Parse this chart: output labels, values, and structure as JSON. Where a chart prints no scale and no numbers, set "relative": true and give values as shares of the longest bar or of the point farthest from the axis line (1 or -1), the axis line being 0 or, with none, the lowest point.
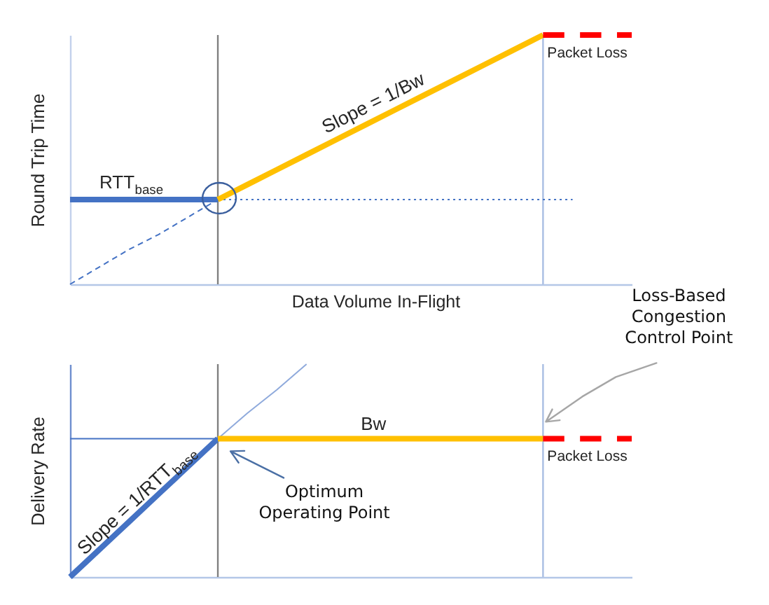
{
  "chart_data": [
    {
      "type": "line",
      "ylabel": "Round Trip Time",
      "xlabel": "Data Volume In-Flight",
      "relative": true,
      "tick_labels": false,
      "categories": [
        null,
        null,
        null,
        null,
        null,
        null,
        null,
        null,
        null,
        null,
        null,
        null,
        null,
        null,
        null,
        null,
        null,
        null,
        null,
        null
      ],
      "series": [
        {
          "color": "#4472c4",
          "line_style": "dashed",
          "values": [
            0,
            0.07,
            0.14,
            0.2,
            0.27,
            0.34,
            null,
            null,
            null,
            null,
            null,
            null,
            null,
            null,
            null,
            null,
            null,
            null,
            null,
            null
          ]
        },
        {
          "color": "#4472c4",
          "line_style": "dotted",
          "values": [
            null,
            null,
            null,
            null,
            null,
            0.34,
            0.34,
            0.34,
            0.34,
            0.34,
            0.34,
            0.34,
            0.34,
            0.34,
            0.34,
            0.34,
            0.34,
            0.34,
            null,
            null
          ]
        },
        {
          "name": "RTT$_{base}$",
          "color": "#4472c4",
          "values": [
            0.34,
            0.34,
            0.34,
            0.34,
            0.34,
            0.34,
            null,
            null,
            null,
            null,
            null,
            null,
            null,
            null,
            null,
            null,
            null,
            null,
            null,
            null
          ]
        },
        {
          "name": "Slope = 1/Bw",
          "color": "#ffc000",
          "values": [
            null,
            null,
            null,
            null,
            null,
            0.34,
            0.4,
            0.46,
            0.52,
            0.58,
            0.64,
            0.7,
            0.76,
            0.82,
            0.88,
            0.94,
            1,
            null,
            null,
            null
          ]
        },
        {
          "name": "Packet Loss",
          "color": "#ff0000",
          "line_style": "dashed",
          "values": [
            null,
            null,
            null,
            null,
            null,
            null,
            null,
            null,
            null,
            null,
            null,
            null,
            null,
            null,
            null,
            null,
            1,
            1,
            1,
            1
          ]
        }
      ],
      "annotations": [
        "Loss-Based Congestion Control Point"
      ]
    },
    {
      "type": "line",
      "ylabel": "Delivery Rate",
      "relative": true,
      "tick_labels": false,
      "categories": [
        null,
        null,
        null,
        null,
        null,
        null,
        null,
        null,
        null,
        null,
        null,
        null,
        null,
        null,
        null,
        null,
        null,
        null,
        null,
        null
      ],
      "series": [
        {
          "color": "#4472c4",
          "values": [
            0.65,
            0.65,
            0.65,
            0.65,
            0.65,
            0.65,
            null,
            null,
            null,
            null,
            null,
            null,
            null,
            null,
            null,
            null,
            null,
            null,
            null,
            null
          ]
        },
        {
          "color": "#8faadc",
          "values": [
            null,
            null,
            null,
            null,
            null,
            0.65,
            0.77,
            0.88,
            1,
            null,
            null,
            null,
            null,
            null,
            null,
            null,
            null,
            null,
            null,
            null
          ]
        },
        {
          "name": "Slope = 1/RTT$_{base}$",
          "color": "#4472c4",
          "values": [
            0,
            0.13,
            0.26,
            0.39,
            0.52,
            0.65,
            null,
            null,
            null,
            null,
            null,
            null,
            null,
            null,
            null,
            null,
            null,
            null,
            null,
            null
          ]
        },
        {
          "name": "Bw",
          "color": "#ffc000",
          "values": [
            null,
            null,
            null,
            null,
            null,
            0.65,
            0.65,
            0.65,
            0.65,
            0.65,
            0.65,
            0.65,
            0.65,
            0.65,
            0.65,
            0.65,
            0.65,
            null,
            null,
            null
          ]
        },
        {
          "name": "Packet Loss",
          "color": "#ff0000",
          "line_style": "dashed",
          "values": [
            null,
            null,
            null,
            null,
            null,
            null,
            null,
            null,
            null,
            null,
            null,
            null,
            null,
            null,
            null,
            null,
            0.65,
            0.65,
            0.65,
            0.65
          ]
        }
      ],
      "annotations": [
        "Optimum Operating Point"
      ]
    }
  ]
}
